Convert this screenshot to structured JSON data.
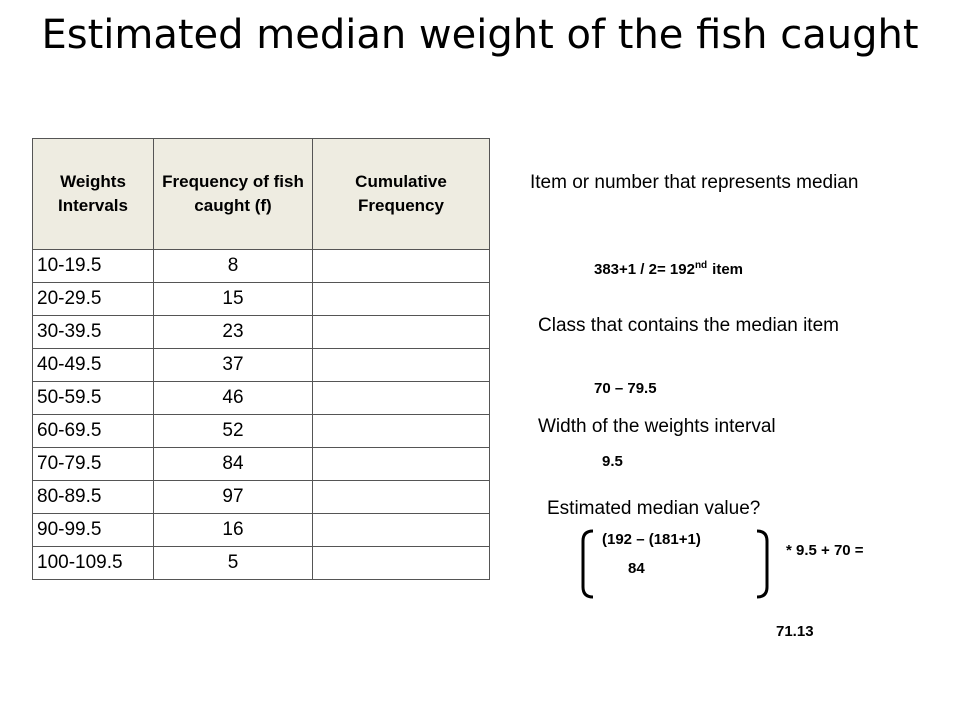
{
  "title": "Estimated median weight of the fish caught",
  "table": {
    "headers": [
      "Weights Intervals",
      "Frequency of fish caught (f)",
      "Cumulative Frequency"
    ],
    "rows": [
      [
        "10-19.5",
        "8"
      ],
      [
        "20-29.5",
        "15"
      ],
      [
        "30-39.5",
        "23"
      ],
      [
        "40-49.5",
        "37"
      ],
      [
        "50-59.5",
        "46"
      ],
      [
        "60-69.5",
        "52"
      ],
      [
        "70-79.5",
        "84"
      ],
      [
        "80-89.5",
        "97"
      ],
      [
        "90-99.5",
        "16"
      ],
      [
        "100-109.5",
        "5"
      ]
    ]
  },
  "notes": {
    "item_question": "Item or number that represents median",
    "item_answer": {
      "text": "383+1 / 2= 192",
      "sup": "nd",
      "suffix": "item"
    },
    "class_question": "Class that contains the median item",
    "class_answer": "70 – 79.5",
    "width_question": "Width of the weights interval",
    "width_answer": "9.5",
    "median_question": "Estimated median value?",
    "formula": {
      "numerator": "(192 – (181+1)",
      "denominator": "84",
      "tail": "* 9.5 + 70 =",
      "result": "71.13"
    }
  }
}
